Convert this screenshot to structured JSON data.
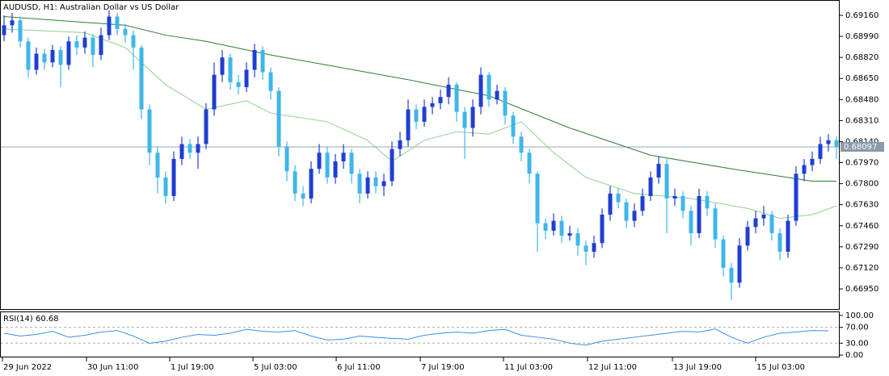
{
  "chart_data": {
    "type": "candlestick",
    "title": "AUDUSD, H1:  Australian Dollar vs US Dollar",
    "up_color": "#1f3fd1",
    "down_color": "#3fb6ea",
    "candles": [
      [
        0.69,
        0.6916,
        0.6895,
        0.6908
      ],
      [
        0.6908,
        0.6918,
        0.6902,
        0.6912
      ],
      [
        0.6912,
        0.6915,
        0.689,
        0.6895
      ],
      [
        0.6895,
        0.6898,
        0.6866,
        0.6872
      ],
      [
        0.6872,
        0.689,
        0.6868,
        0.6885
      ],
      [
        0.6885,
        0.6889,
        0.6872,
        0.6878
      ],
      [
        0.6878,
        0.6892,
        0.6874,
        0.6888
      ],
      [
        0.6888,
        0.6891,
        0.6858,
        0.6876
      ],
      [
        0.6876,
        0.6899,
        0.6872,
        0.6895
      ],
      [
        0.6895,
        0.69,
        0.6884,
        0.689
      ],
      [
        0.689,
        0.6903,
        0.6885,
        0.6898
      ],
      [
        0.6898,
        0.6901,
        0.6874,
        0.6884
      ],
      [
        0.6884,
        0.6906,
        0.688,
        0.69
      ],
      [
        0.69,
        0.692,
        0.6896,
        0.6915
      ],
      [
        0.6915,
        0.6918,
        0.69,
        0.6905
      ],
      [
        0.6905,
        0.6909,
        0.6894,
        0.69
      ],
      [
        0.69,
        0.6904,
        0.6872,
        0.689
      ],
      [
        0.689,
        0.6892,
        0.6832,
        0.684
      ],
      [
        0.684,
        0.6844,
        0.6795,
        0.6805
      ],
      [
        0.6805,
        0.681,
        0.6772,
        0.6785
      ],
      [
        0.6785,
        0.679,
        0.6764,
        0.677
      ],
      [
        0.677,
        0.6806,
        0.6766,
        0.68
      ],
      [
        0.68,
        0.6818,
        0.6795,
        0.6812
      ],
      [
        0.6812,
        0.6816,
        0.68,
        0.6805
      ],
      [
        0.6805,
        0.6818,
        0.6792,
        0.6812
      ],
      [
        0.6812,
        0.6845,
        0.6808,
        0.684
      ],
      [
        0.684,
        0.6878,
        0.6835,
        0.6868
      ],
      [
        0.6868,
        0.6888,
        0.6862,
        0.6882
      ],
      [
        0.6882,
        0.6885,
        0.6856,
        0.6862
      ],
      [
        0.6862,
        0.6868,
        0.6852,
        0.6858
      ],
      [
        0.6858,
        0.6878,
        0.6854,
        0.6872
      ],
      [
        0.6872,
        0.6893,
        0.6866,
        0.6888
      ],
      [
        0.6888,
        0.6891,
        0.6864,
        0.687
      ],
      [
        0.687,
        0.6874,
        0.6848,
        0.6855
      ],
      [
        0.6855,
        0.6858,
        0.6802,
        0.681
      ],
      [
        0.681,
        0.6814,
        0.6782,
        0.679
      ],
      [
        0.679,
        0.6795,
        0.6766,
        0.6772
      ],
      [
        0.6772,
        0.6778,
        0.6762,
        0.6768
      ],
      [
        0.6768,
        0.6798,
        0.6764,
        0.6792
      ],
      [
        0.6792,
        0.6812,
        0.6788,
        0.6805
      ],
      [
        0.6805,
        0.681,
        0.678,
        0.6785
      ],
      [
        0.6785,
        0.6804,
        0.678,
        0.6798
      ],
      [
        0.6798,
        0.6812,
        0.6792,
        0.6805
      ],
      [
        0.6805,
        0.6808,
        0.678,
        0.6788
      ],
      [
        0.6788,
        0.6792,
        0.6764,
        0.6772
      ],
      [
        0.6772,
        0.679,
        0.6768,
        0.6785
      ],
      [
        0.6785,
        0.679,
        0.6772,
        0.6778
      ],
      [
        0.6778,
        0.6788,
        0.677,
        0.6782
      ],
      [
        0.6782,
        0.6814,
        0.6778,
        0.6808
      ],
      [
        0.6808,
        0.6822,
        0.6802,
        0.6815
      ],
      [
        0.6815,
        0.6848,
        0.681,
        0.684
      ],
      [
        0.684,
        0.6844,
        0.6824,
        0.683
      ],
      [
        0.683,
        0.6848,
        0.6826,
        0.6842
      ],
      [
        0.6842,
        0.685,
        0.6836,
        0.6845
      ],
      [
        0.6845,
        0.6856,
        0.684,
        0.685
      ],
      [
        0.685,
        0.6866,
        0.6844,
        0.686
      ],
      [
        0.686,
        0.6862,
        0.683,
        0.6838
      ],
      [
        0.6838,
        0.6842,
        0.68,
        0.6825
      ],
      [
        0.6825,
        0.6848,
        0.6818,
        0.6842
      ],
      [
        0.6842,
        0.6874,
        0.6836,
        0.6868
      ],
      [
        0.6868,
        0.687,
        0.6842,
        0.6848
      ],
      [
        0.6848,
        0.686,
        0.6844,
        0.6855
      ],
      [
        0.6855,
        0.6858,
        0.6828,
        0.6835
      ],
      [
        0.6835,
        0.6838,
        0.6812,
        0.6818
      ],
      [
        0.6818,
        0.6822,
        0.6798,
        0.6805
      ],
      [
        0.6805,
        0.6808,
        0.678,
        0.6788
      ],
      [
        0.6788,
        0.679,
        0.6725,
        0.6748
      ],
      [
        0.6748,
        0.6752,
        0.6735,
        0.6742
      ],
      [
        0.6742,
        0.6756,
        0.6738,
        0.675
      ],
      [
        0.675,
        0.6754,
        0.6732,
        0.6738
      ],
      [
        0.6738,
        0.6746,
        0.6734,
        0.674
      ],
      [
        0.674,
        0.6744,
        0.6722,
        0.673
      ],
      [
        0.673,
        0.6734,
        0.6714,
        0.6725
      ],
      [
        0.6725,
        0.6738,
        0.672,
        0.6732
      ],
      [
        0.6732,
        0.676,
        0.6728,
        0.6755
      ],
      [
        0.6755,
        0.6778,
        0.675,
        0.6772
      ],
      [
        0.6772,
        0.6776,
        0.676,
        0.6765
      ],
      [
        0.6765,
        0.6768,
        0.6744,
        0.675
      ],
      [
        0.675,
        0.6764,
        0.6745,
        0.6758
      ],
      [
        0.6758,
        0.6776,
        0.6754,
        0.677
      ],
      [
        0.677,
        0.679,
        0.6766,
        0.6785
      ],
      [
        0.6785,
        0.6802,
        0.678,
        0.6796
      ],
      [
        0.6796,
        0.68,
        0.674,
        0.6768
      ],
      [
        0.6768,
        0.6776,
        0.6762,
        0.677
      ],
      [
        0.677,
        0.6774,
        0.6752,
        0.6758
      ],
      [
        0.6758,
        0.6762,
        0.673,
        0.674
      ],
      [
        0.674,
        0.6776,
        0.6736,
        0.677
      ],
      [
        0.677,
        0.6774,
        0.6754,
        0.676
      ],
      [
        0.676,
        0.6764,
        0.6728,
        0.6735
      ],
      [
        0.6735,
        0.6738,
        0.6705,
        0.6712
      ],
      [
        0.6712,
        0.6716,
        0.6686,
        0.67
      ],
      [
        0.67,
        0.6736,
        0.6696,
        0.673
      ],
      [
        0.673,
        0.675,
        0.6726,
        0.6745
      ],
      [
        0.6745,
        0.6758,
        0.674,
        0.6752
      ],
      [
        0.6752,
        0.6762,
        0.6746,
        0.6755
      ],
      [
        0.6755,
        0.6758,
        0.6734,
        0.674
      ],
      [
        0.674,
        0.6744,
        0.6718,
        0.6725
      ],
      [
        0.6725,
        0.6755,
        0.672,
        0.675
      ],
      [
        0.675,
        0.6794,
        0.6746,
        0.6788
      ],
      [
        0.6788,
        0.68,
        0.6782,
        0.6795
      ],
      [
        0.6795,
        0.6806,
        0.679,
        0.68
      ],
      [
        0.68,
        0.6818,
        0.6796,
        0.6812
      ],
      [
        0.6812,
        0.682,
        0.6806,
        0.6815
      ],
      [
        0.6815,
        0.6818,
        0.68,
        0.681
      ]
    ],
    "moving_averages": [
      {
        "color": "#2e7d32",
        "x": [
          0,
          15,
          20,
          25,
          33,
          50,
          60,
          70,
          80,
          90,
          100,
          103
        ],
        "values": [
          0.6915,
          0.6908,
          0.69,
          0.6895,
          0.6884,
          0.6864,
          0.6851,
          0.6825,
          0.6803,
          0.6792,
          0.6782,
          0.6782
        ]
      },
      {
        "color": "#8fd08f",
        "x": [
          0,
          10,
          15,
          20,
          25,
          30,
          33,
          40,
          45,
          48,
          52,
          56,
          60,
          64,
          68,
          72,
          78,
          85,
          92,
          96,
          100,
          103
        ],
        "values": [
          0.6905,
          0.6902,
          0.689,
          0.686,
          0.684,
          0.6847,
          0.6837,
          0.683,
          0.6815,
          0.6798,
          0.6815,
          0.6822,
          0.682,
          0.683,
          0.6805,
          0.6785,
          0.6772,
          0.6768,
          0.676,
          0.6752,
          0.6755,
          0.6762
        ]
      }
    ],
    "last_price": 0.68097,
    "xlim": [
      -0.5,
      103.5
    ],
    "xticks": [
      {
        "value": -0.2,
        "label": "29 Jun 2022"
      },
      {
        "value": 10.2,
        "label": "30 Jun 11:00"
      },
      {
        "value": 20.5,
        "label": "1 Jul 19:00"
      },
      {
        "value": 30.8,
        "label": "5 Jul 03:00"
      },
      {
        "value": 41.1,
        "label": "6 Jul 11:00"
      },
      {
        "value": 51.5,
        "label": "7 Jul 19:00"
      },
      {
        "value": 61.8,
        "label": "11 Jul 03:00"
      },
      {
        "value": 72.2,
        "label": "12 Jul 11:00"
      },
      {
        "value": 82.7,
        "label": "13 Jul 19:00"
      },
      {
        "value": 93,
        "label": "15 Jul 03:00"
      }
    ],
    "ylim": [
      0.66787,
      0.69284
    ],
    "yticks": [
      {
        "value": 0.6916,
        "label": "0.69160"
      },
      {
        "value": 0.6899,
        "label": "0.68990"
      },
      {
        "value": 0.6882,
        "label": "0.68820"
      },
      {
        "value": 0.6865,
        "label": "0.68650"
      },
      {
        "value": 0.6848,
        "label": "0.68480"
      },
      {
        "value": 0.6831,
        "label": "0.68310"
      },
      {
        "value": 0.6814,
        "label": "0.68140"
      },
      {
        "value": 0.6797,
        "label": "0.67970"
      },
      {
        "value": 0.678,
        "label": "0.67800"
      },
      {
        "value": 0.6763,
        "label": "0.67630"
      },
      {
        "value": 0.6746,
        "label": "0.67460"
      },
      {
        "value": 0.6729,
        "label": "0.67290"
      },
      {
        "value": 0.6712,
        "label": "0.67120"
      },
      {
        "value": 0.6695,
        "label": "0.66950"
      }
    ],
    "rsi": {
      "label": "RSI(14) 60.68",
      "color": "#3a8ee6",
      "x": [
        0,
        2,
        4,
        6,
        8,
        10,
        12,
        14,
        16,
        18,
        20,
        22,
        24,
        26,
        28,
        30,
        32,
        34,
        36,
        38,
        40,
        42,
        44,
        46,
        48,
        50,
        52,
        54,
        56,
        58,
        60,
        62,
        64,
        66,
        68,
        70,
        72,
        74,
        76,
        78,
        80,
        82,
        84,
        86,
        88,
        90,
        92,
        94,
        96,
        98,
        100,
        102
      ],
      "values": [
        55,
        48,
        52,
        60,
        45,
        50,
        58,
        62,
        48,
        30,
        35,
        45,
        52,
        50,
        55,
        65,
        60,
        58,
        62,
        48,
        38,
        40,
        48,
        45,
        42,
        40,
        50,
        55,
        58,
        55,
        62,
        65,
        50,
        45,
        40,
        30,
        25,
        35,
        40,
        45,
        50,
        55,
        60,
        58,
        66,
        45,
        30,
        45,
        55,
        58,
        62,
        61
      ],
      "ylim": [
        -6,
        110
      ],
      "yticks": [
        {
          "value": 100,
          "label": "100.00"
        },
        {
          "value": 70,
          "label": "70.00"
        },
        {
          "value": 30,
          "label": "30.00"
        },
        {
          "value": 0,
          "label": "0.00"
        }
      ],
      "levels": [
        70,
        30
      ]
    }
  }
}
